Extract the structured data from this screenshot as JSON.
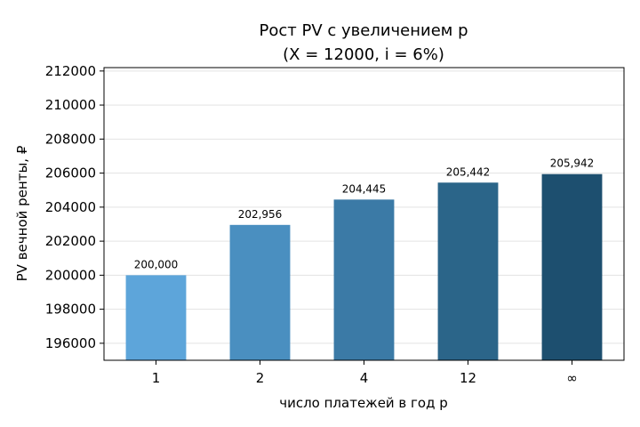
{
  "chart_data": {
    "type": "bar",
    "title_line1": "Рост PV с увеличением p",
    "title_line2": "(X = 12000, i = 6%)",
    "xlabel": "число платежей в год p",
    "ylabel": "PV вечной ренты, ₽",
    "categories": [
      "1",
      "2",
      "4",
      "12",
      "∞"
    ],
    "values": [
      200000,
      202956,
      204445,
      205442,
      205942
    ],
    "data_labels": [
      "200,000",
      "202,956",
      "204,445",
      "205,442",
      "205,942"
    ],
    "bar_colors": [
      "#5da5da",
      "#4a8fc0",
      "#3b7aa6",
      "#2b6589",
      "#1d4f6f"
    ],
    "ylim": [
      195000,
      212200
    ],
    "yticks": [
      196000,
      198000,
      200000,
      202000,
      204000,
      206000,
      208000,
      210000,
      212000
    ],
    "ytick_labels": [
      "196000",
      "198000",
      "200000",
      "202000",
      "204000",
      "206000",
      "208000",
      "210000",
      "212000"
    ],
    "grid": "horizontal",
    "legend": "none"
  }
}
